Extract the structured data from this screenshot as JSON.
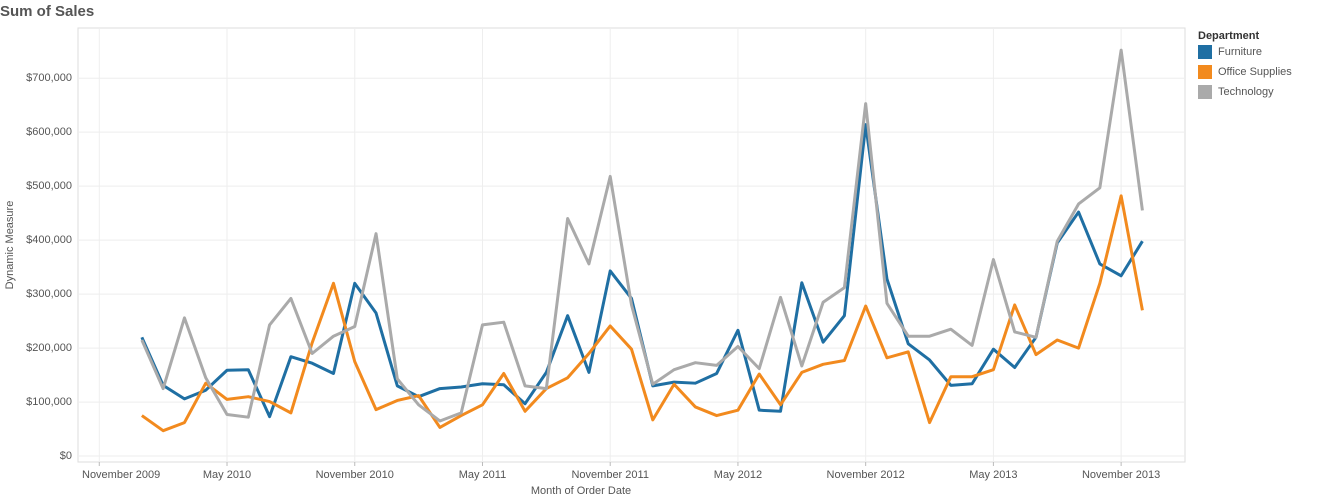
{
  "chart_data": {
    "type": "line",
    "title": "Sum of Sales",
    "x_label": "Month of Order Date",
    "y_label": "Dynamic Measure",
    "legend_title": "Department",
    "legend": "right",
    "grid": true,
    "x": [
      "2010-01",
      "2010-02",
      "2010-03",
      "2010-04",
      "2010-05",
      "2010-06",
      "2010-07",
      "2010-08",
      "2010-09",
      "2010-10",
      "2010-11",
      "2010-12",
      "2011-01",
      "2011-02",
      "2011-03",
      "2011-04",
      "2011-05",
      "2011-06",
      "2011-07",
      "2011-08",
      "2011-09",
      "2011-10",
      "2011-11",
      "2011-12",
      "2012-01",
      "2012-02",
      "2012-03",
      "2012-04",
      "2012-05",
      "2012-06",
      "2012-07",
      "2012-08",
      "2012-09",
      "2012-10",
      "2012-11",
      "2012-12",
      "2013-01",
      "2013-02",
      "2013-03",
      "2013-04",
      "2013-05",
      "2013-06",
      "2013-07",
      "2013-08",
      "2013-09",
      "2013-10",
      "2013-11",
      "2013-12"
    ],
    "xlim": [
      "2009-10",
      "2014-02"
    ],
    "xticks": [
      {
        "value": "2009-11",
        "label": "November 2009"
      },
      {
        "value": "2010-05",
        "label": "May 2010"
      },
      {
        "value": "2010-11",
        "label": "November 2010"
      },
      {
        "value": "2011-05",
        "label": "May 2011"
      },
      {
        "value": "2011-11",
        "label": "November 2011"
      },
      {
        "value": "2012-05",
        "label": "May 2012"
      },
      {
        "value": "2012-11",
        "label": "November 2012"
      },
      {
        "value": "2013-05",
        "label": "May 2013"
      },
      {
        "value": "2013-11",
        "label": "November 2013"
      }
    ],
    "ylim": [
      -11000,
      793000
    ],
    "yticks": [
      {
        "value": 0,
        "label": "$0"
      },
      {
        "value": 100000,
        "label": "$100,000"
      },
      {
        "value": 200000,
        "label": "$200,000"
      },
      {
        "value": 300000,
        "label": "$300,000"
      },
      {
        "value": 400000,
        "label": "$400,000"
      },
      {
        "value": 500000,
        "label": "$500,000"
      },
      {
        "value": 600000,
        "label": "$600,000"
      },
      {
        "value": 700000,
        "label": "$700,000"
      }
    ],
    "series": [
      {
        "name": "Furniture",
        "color": "#1f6fa3",
        "values": [
          220000,
          131000,
          106000,
          122000,
          159000,
          160000,
          73000,
          184000,
          172000,
          153000,
          320000,
          265000,
          130000,
          110000,
          125000,
          128000,
          134000,
          132000,
          97000,
          155000,
          260000,
          155000,
          343000,
          292000,
          130000,
          137000,
          135000,
          153000,
          233000,
          85000,
          83000,
          321000,
          211000,
          260000,
          614000,
          328000,
          208000,
          178000,
          131000,
          134000,
          198000,
          164000,
          220000,
          395000,
          452000,
          356000,
          334000,
          398000
        ]
      },
      {
        "name": "Office Supplies",
        "color": "#f28a1e",
        "values": [
          75000,
          47000,
          62000,
          135000,
          105000,
          110000,
          101000,
          80000,
          210000,
          320000,
          175000,
          86000,
          103000,
          112000,
          53000,
          75000,
          95000,
          153000,
          83000,
          125000,
          145000,
          190000,
          241000,
          198000,
          67000,
          133000,
          91000,
          75000,
          85000,
          152000,
          95000,
          155000,
          170000,
          177000,
          278000,
          182000,
          193000,
          62000,
          147000,
          147000,
          160000,
          280000,
          188000,
          215000,
          200000,
          320000,
          482000,
          270000
        ]
      },
      {
        "name": "Technology",
        "color": "#aaaaaa",
        "values": [
          215000,
          125000,
          256000,
          145000,
          77000,
          72000,
          243000,
          292000,
          190000,
          222000,
          240000,
          412000,
          143000,
          95000,
          65000,
          80000,
          243000,
          248000,
          130000,
          125000,
          440000,
          356000,
          518000,
          280000,
          133000,
          160000,
          173000,
          168000,
          203000,
          162000,
          294000,
          167000,
          285000,
          312000,
          653000,
          283000,
          222000,
          222000,
          235000,
          205000,
          364000,
          230000,
          220000,
          398000,
          467000,
          497000,
          752000,
          455000
        ]
      }
    ]
  }
}
